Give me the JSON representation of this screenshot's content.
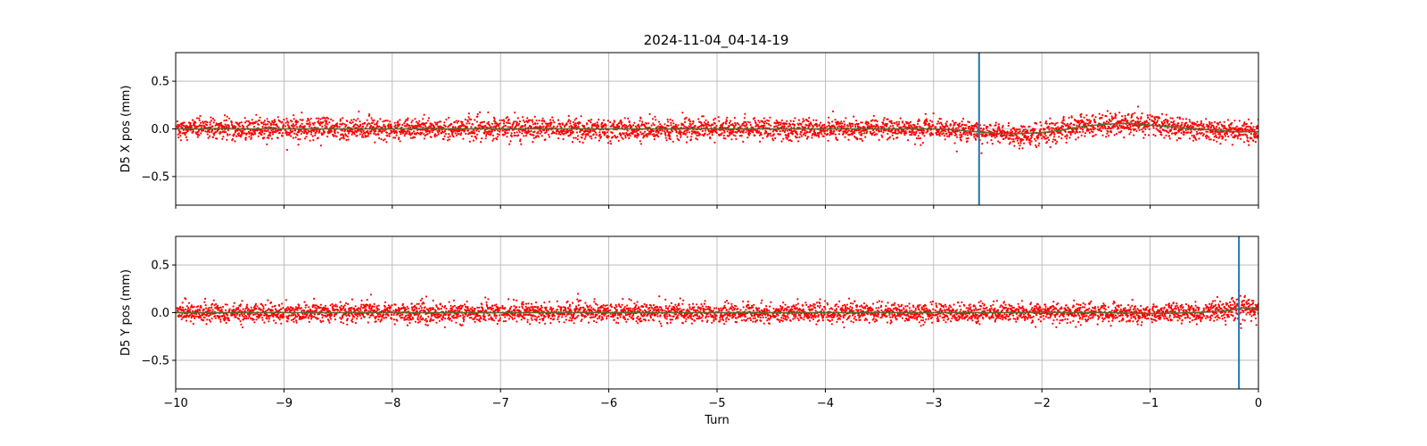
{
  "figure": {
    "title": "2024-11-04_04-14-19"
  },
  "chart_data": [
    {
      "type": "scatter",
      "title": "2024-11-04_04-14-19",
      "xlabel": "",
      "ylabel": "D5 X pos (mm)",
      "xlim": [
        -10,
        0
      ],
      "ylim": [
        -0.8,
        0.8
      ],
      "grid": true,
      "x_ticks": [
        -10,
        -9,
        -8,
        -7,
        -6,
        -5,
        -4,
        -3,
        -2,
        -1,
        0
      ],
      "y_ticks": [
        -0.5,
        0.0,
        0.5
      ],
      "y_tick_labels": [
        "−0.5",
        "0.0",
        "0.5"
      ],
      "scatter_color": "#ff0000",
      "scatter_noise_sd": 0.055,
      "gaps_every_turns": 0.5,
      "trend_color": "#556b2f",
      "trend": {
        "x": [
          -10,
          -3,
          -2.8,
          -2.6,
          -2.4,
          -2.2,
          -2.0,
          -1.8,
          -1.6,
          -1.4,
          -1.2,
          -1.0,
          -0.8,
          -0.6,
          -0.4,
          -0.2,
          0
        ],
        "y": [
          0.0,
          0.0,
          -0.01,
          -0.03,
          -0.05,
          -0.05,
          -0.04,
          -0.01,
          0.03,
          0.05,
          0.06,
          0.04,
          0.02,
          0.0,
          -0.01,
          -0.03,
          -0.03
        ]
      },
      "vline": {
        "x": -2.58,
        "color": "#1f77b4"
      }
    },
    {
      "type": "scatter",
      "xlabel": "Turn",
      "ylabel": "D5 Y pos (mm)",
      "xlim": [
        -10,
        0
      ],
      "ylim": [
        -0.8,
        0.8
      ],
      "grid": true,
      "x_ticks": [
        -10,
        -9,
        -8,
        -7,
        -6,
        -5,
        -4,
        -3,
        -2,
        -1,
        0
      ],
      "x_tick_labels": [
        "−10",
        "−9",
        "−8",
        "−7",
        "−6",
        "−5",
        "−4",
        "−3",
        "−2",
        "−1",
        "0"
      ],
      "y_ticks": [
        -0.5,
        0.0,
        0.5
      ],
      "y_tick_labels": [
        "−0.5",
        "0.0",
        "0.5"
      ],
      "scatter_color": "#ff0000",
      "scatter_noise_sd": 0.05,
      "gaps_every_turns": 0.5,
      "trend_color": "#556b2f",
      "trend": {
        "x": [
          -10,
          -2.2,
          -2.0,
          -1.8,
          -1.4,
          -1.0,
          -0.6,
          -0.3,
          -0.15,
          0
        ],
        "y": [
          0.0,
          0.0,
          0.01,
          0.0,
          0.0,
          -0.01,
          0.0,
          0.02,
          0.05,
          0.05
        ]
      },
      "vline": {
        "x": -0.18,
        "color": "#1f77b4"
      }
    }
  ]
}
